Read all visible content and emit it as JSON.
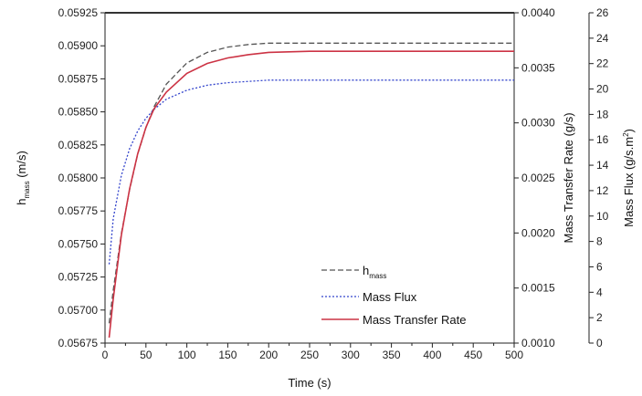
{
  "chart_data": {
    "type": "line",
    "xlabel": "Time (s)",
    "xlim": [
      0,
      500
    ],
    "xticks": [
      0,
      50,
      100,
      150,
      200,
      250,
      300,
      350,
      400,
      450,
      500
    ],
    "axes": {
      "left": {
        "label_main": "h",
        "label_sub": "mass",
        "label_unit": " (m/s)",
        "ylim": [
          0.05675,
          0.05925
        ],
        "ticks": [
          "0.05675",
          "0.05700",
          "0.05725",
          "0.05750",
          "0.05775",
          "0.05800",
          "0.05825",
          "0.05850",
          "0.05875",
          "0.05900",
          "0.05925"
        ]
      },
      "right1": {
        "label": "Mass Transfer Rate (g/s)",
        "ylim": [
          0.001,
          0.004
        ],
        "ticks": [
          "0.0010",
          "0.0015",
          "0.0020",
          "0.0025",
          "0.0030",
          "0.0035",
          "0.0040"
        ]
      },
      "right2": {
        "label_main": "Mass Flux (g/s.m",
        "label_sup": "2",
        "label_end": ")",
        "ylim": [
          0,
          26
        ],
        "ticks": [
          "0",
          "2",
          "4",
          "6",
          "8",
          "10",
          "12",
          "14",
          "16",
          "18",
          "20",
          "22",
          "24",
          "26"
        ]
      }
    },
    "series": [
      {
        "name_main": "h",
        "name_sub": "mass",
        "axis": "left",
        "color": "#555555",
        "dash": "6,3",
        "x": [
          5,
          10,
          20,
          30,
          40,
          50,
          60,
          75,
          100,
          125,
          150,
          175,
          200,
          250,
          300,
          350,
          400,
          450,
          500
        ],
        "y": [
          0.0569,
          0.05715,
          0.05758,
          0.05791,
          0.05818,
          0.05838,
          0.05854,
          0.05871,
          0.05887,
          0.05895,
          0.05899,
          0.05901,
          0.05902,
          0.05902,
          0.05902,
          0.05902,
          0.05902,
          0.05902,
          0.05902
        ]
      },
      {
        "name_main": "Mass Flux",
        "name_sub": "",
        "axis": "right2",
        "color": "#3344cc",
        "dash": "2,2",
        "x": [
          5,
          10,
          20,
          30,
          40,
          50,
          60,
          75,
          100,
          125,
          150,
          175,
          200,
          250,
          300,
          350,
          400,
          450,
          500
        ],
        "y": [
          6.2,
          9.8,
          13.2,
          15.3,
          16.7,
          17.7,
          18.4,
          19.2,
          19.9,
          20.3,
          20.5,
          20.6,
          20.7,
          20.7,
          20.7,
          20.7,
          20.7,
          20.7,
          20.7
        ]
      },
      {
        "name_main": "Mass Transfer Rate",
        "name_sub": "",
        "axis": "right1",
        "color": "#cc3344",
        "dash": "",
        "x": [
          5,
          10,
          20,
          30,
          40,
          50,
          60,
          75,
          100,
          125,
          150,
          175,
          200,
          250,
          300,
          350,
          400,
          450,
          500
        ],
        "y": [
          0.00105,
          0.0014,
          0.00198,
          0.0024,
          0.00272,
          0.00296,
          0.00313,
          0.00328,
          0.00345,
          0.00354,
          0.00359,
          0.00362,
          0.00364,
          0.00365,
          0.00365,
          0.00365,
          0.00365,
          0.00365,
          0.00365
        ]
      }
    ],
    "legend_position": "bottom-right"
  }
}
